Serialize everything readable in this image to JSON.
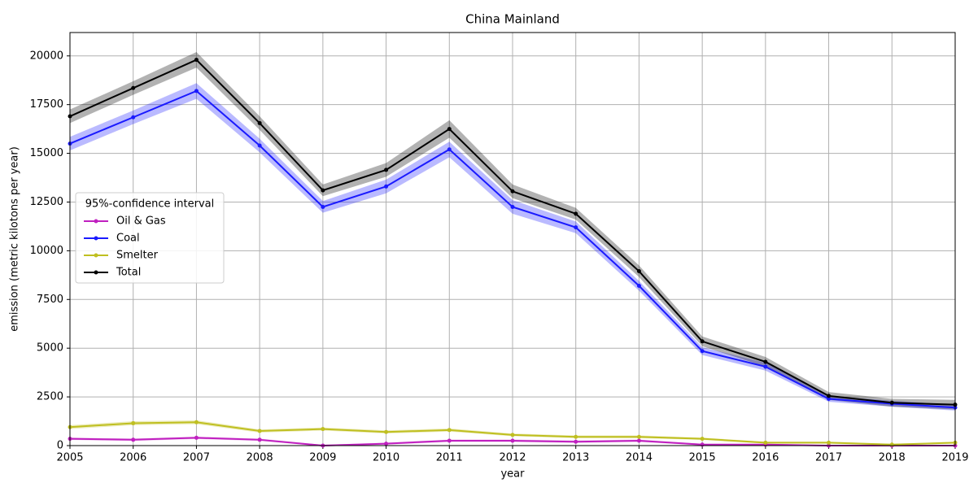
{
  "chart_data": {
    "type": "line",
    "title": "China Mainland",
    "x_label": "year",
    "y_label": "emission (metric kilotons per year)",
    "legend_title": "95%-confidence interval",
    "legend": "center left",
    "grid": true,
    "x": [
      2005,
      2006,
      2007,
      2008,
      2009,
      2010,
      2011,
      2012,
      2013,
      2014,
      2015,
      2016,
      2017,
      2018,
      2019
    ],
    "xlim": [
      2005,
      2019
    ],
    "xticks": [
      2005,
      2006,
      2007,
      2008,
      2009,
      2010,
      2011,
      2012,
      2013,
      2014,
      2015,
      2016,
      2017,
      2018,
      2019
    ],
    "ylim": [
      0,
      21200
    ],
    "yticks": [
      0,
      2500,
      5000,
      7500,
      10000,
      12500,
      15000,
      17500,
      20000
    ],
    "series": [
      {
        "name": "Oil & Gas",
        "color": "#c020c0",
        "values": [
          350,
          300,
          400,
          300,
          0,
          100,
          250,
          250,
          200,
          250,
          50,
          50,
          0,
          0,
          0
        ],
        "ci": [
          60,
          60,
          60,
          60,
          40,
          50,
          60,
          60,
          60,
          60,
          40,
          40,
          30,
          30,
          30
        ]
      },
      {
        "name": "Coal",
        "color": "#1a1aff",
        "values": [
          15500,
          16850,
          18200,
          15400,
          12250,
          13300,
          15200,
          12250,
          11200,
          8200,
          4850,
          4050,
          2400,
          2150,
          1950
        ],
        "ci": [
          350,
          350,
          400,
          350,
          300,
          350,
          400,
          350,
          300,
          250,
          200,
          200,
          150,
          150,
          150
        ]
      },
      {
        "name": "Smelter",
        "color": "#bfbf20",
        "values": [
          950,
          1150,
          1200,
          750,
          850,
          700,
          800,
          550,
          450,
          450,
          350,
          150,
          150,
          50,
          150
        ],
        "ci": [
          100,
          100,
          100,
          80,
          80,
          80,
          80,
          70,
          70,
          70,
          60,
          50,
          50,
          40,
          50
        ]
      },
      {
        "name": "Total",
        "color": "#000000",
        "values": [
          16900,
          18350,
          19800,
          16550,
          13100,
          14150,
          16250,
          13050,
          11900,
          8950,
          5350,
          4300,
          2550,
          2200,
          2100
        ],
        "ci": [
          350,
          350,
          400,
          350,
          300,
          350,
          450,
          350,
          300,
          300,
          250,
          250,
          200,
          200,
          250
        ]
      }
    ]
  }
}
